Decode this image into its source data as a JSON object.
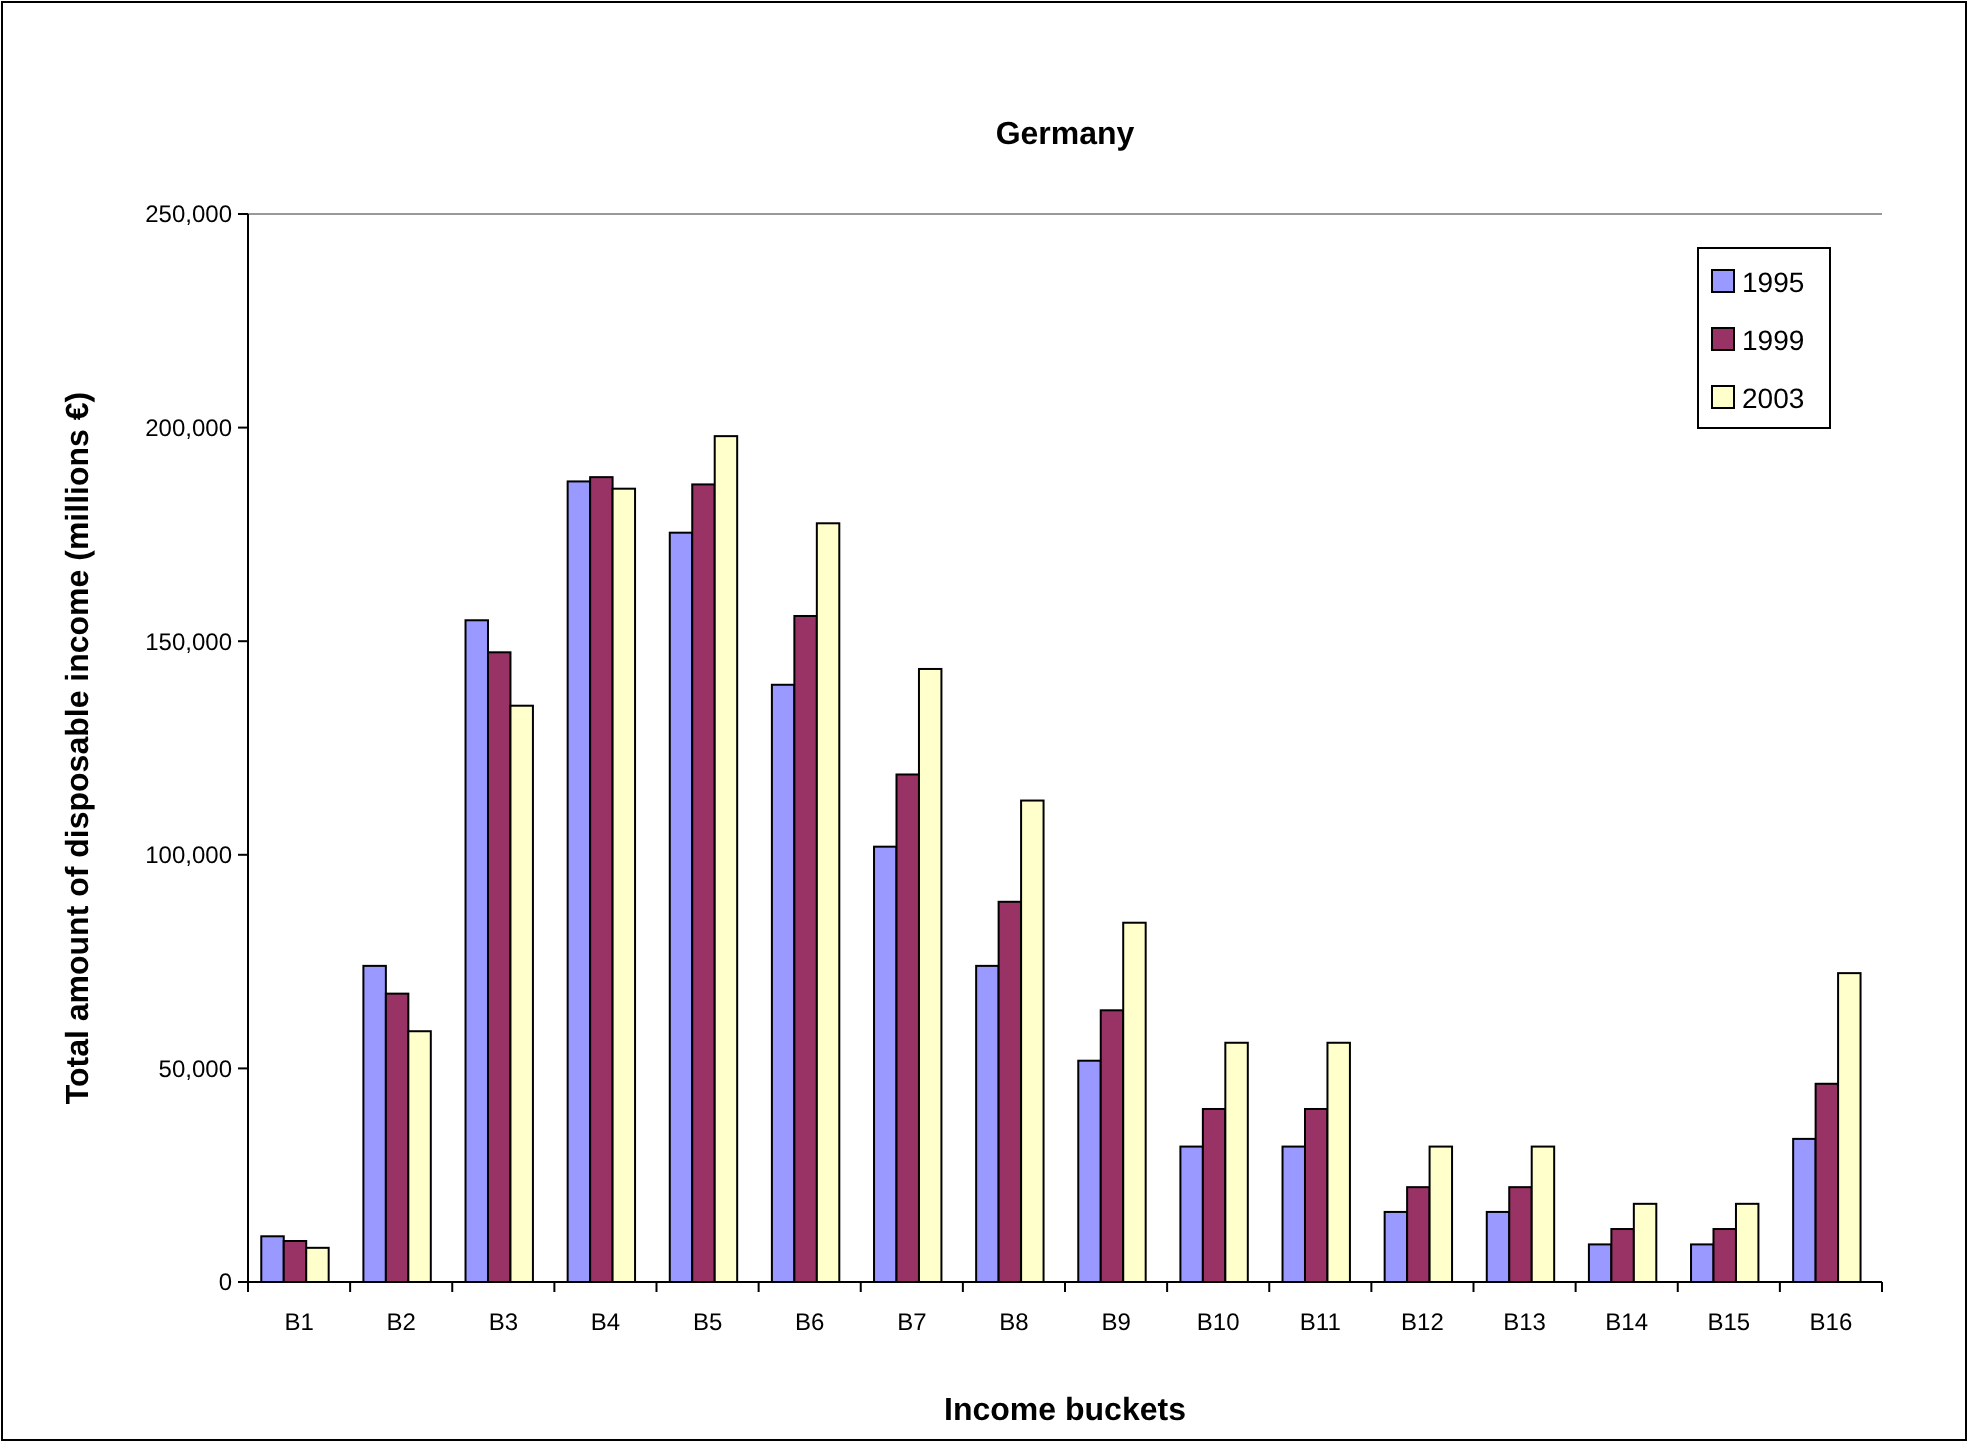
{
  "chart_data": {
    "type": "bar",
    "title": "Germany",
    "xlabel": "Income buckets",
    "ylabel": "Total amount of disposable income (millions €)",
    "categories": [
      "B1",
      "B2",
      "B3",
      "B4",
      "B5",
      "B6",
      "B7",
      "B8",
      "B9",
      "B10",
      "B11",
      "B12",
      "B13",
      "B14",
      "B15",
      "B16"
    ],
    "series": [
      {
        "name": "1995",
        "color": "#9999ff",
        "values": [
          10700,
          74000,
          154900,
          187400,
          175400,
          139800,
          101900,
          74000,
          51800,
          31700,
          31700,
          16400,
          16400,
          8800,
          8800,
          33500
        ]
      },
      {
        "name": "1999",
        "color": "#993366",
        "values": [
          9600,
          67500,
          147400,
          188400,
          186700,
          155900,
          118800,
          89000,
          63600,
          40500,
          40500,
          22200,
          22200,
          12400,
          12400,
          46400
        ]
      },
      {
        "name": "2003",
        "color": "#ffffcc",
        "values": [
          8000,
          58700,
          134900,
          185700,
          198000,
          177600,
          143500,
          112700,
          84100,
          56000,
          56000,
          31700,
          31700,
          18300,
          18300,
          72300
        ]
      }
    ],
    "ylim": [
      0,
      250000
    ],
    "yticks": [
      {
        "value": 0,
        "label": "0"
      },
      {
        "value": 50000,
        "label": "50,000"
      },
      {
        "value": 100000,
        "label": "100,000"
      },
      {
        "value": 150000,
        "label": "150,000"
      },
      {
        "value": 200000,
        "label": "200,000"
      },
      {
        "value": 250000,
        "label": "250,000"
      }
    ],
    "legend": "top right"
  }
}
